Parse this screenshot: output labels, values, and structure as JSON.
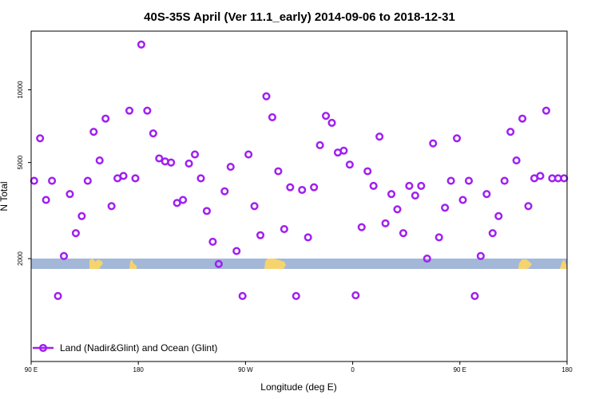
{
  "chart_data": {
    "type": "scatter",
    "title": "40S-35S April (Ver 11.1_early)   2014-09-06 to 2018-12-31",
    "xlabel": "Longitude (deg E)",
    "ylabel": "N Total",
    "x_ticks": [
      {
        "value": 90,
        "label": "90 E"
      },
      {
        "value": 180,
        "label": "180"
      },
      {
        "value": 270,
        "label": "90 W"
      },
      {
        "value": 360,
        "label": "0"
      },
      {
        "value": 450,
        "label": "90 E"
      },
      {
        "value": 540,
        "label": "180"
      }
    ],
    "y_ticks": [
      2000,
      5000,
      10000
    ],
    "xlim": [
      90,
      540
    ],
    "ylim": [
      750,
      17500
    ],
    "y_scale": "log",
    "grid": false,
    "legend": {
      "position": "bottom-left",
      "label": "Land (Nadir&Glint) and Ocean (Glint)"
    },
    "colors": {
      "series": "#a020f0",
      "band": "#a3b8d8",
      "land": "#f5d46e"
    },
    "series": [
      {
        "name": "Land (Nadir&Glint) and Ocean (Glint)",
        "x": [
          92.5,
          97.5,
          102.5,
          107.5,
          112.5,
          117.5,
          122.5,
          127.5,
          132.5,
          137.5,
          142.5,
          147.5,
          152.5,
          157.5,
          162.5,
          167.5,
          172.5,
          177.5,
          182.5,
          187.5,
          192.5,
          197.5,
          202.5,
          207.5,
          212.5,
          217.5,
          222.5,
          227.5,
          232.5,
          237.5,
          242.5,
          247.5,
          252.5,
          257.5,
          262.5,
          267.5,
          272.5,
          277.5,
          282.5,
          287.5,
          292.5,
          297.5,
          302.5,
          307.5,
          312.5,
          317.5,
          322.5,
          327.5,
          332.5,
          337.5,
          342.5,
          347.5,
          352.5,
          357.5,
          362.5,
          367.5,
          372.5,
          377.5,
          382.5,
          387.5,
          392.5,
          397.5,
          402.5,
          407.5,
          412.5,
          417.5,
          422.5,
          427.5,
          432.5,
          437.5,
          442.5,
          447.5,
          452.5,
          457.5,
          462.5,
          467.5,
          472.5,
          477.5,
          482.5,
          487.5,
          492.5,
          497.5,
          502.5,
          507.5,
          512.5,
          517.5,
          522.5,
          527.5,
          532.5,
          537.5
        ],
        "values": [
          4200,
          6300,
          3500,
          4200,
          1400,
          2050,
          3700,
          2550,
          3000,
          4200,
          6700,
          5100,
          7600,
          3300,
          4300,
          4400,
          8200,
          4300,
          15400,
          8200,
          6600,
          5200,
          5050,
          5000,
          3400,
          3500,
          4950,
          5400,
          4300,
          3150,
          2350,
          1900,
          3800,
          4800,
          2150,
          1400,
          5400,
          3300,
          2500,
          9400,
          7700,
          4600,
          2650,
          3950,
          1400,
          3850,
          2450,
          3950,
          5900,
          7800,
          7300,
          5500,
          5600,
          4900,
          1410,
          2700,
          4600,
          4000,
          6400,
          2800,
          3700,
          3200,
          2550,
          4000,
          3650,
          4000,
          2000,
          6000,
          2450,
          3250,
          4200,
          6300,
          3500,
          4200,
          1400,
          2050,
          3700,
          2550,
          3000,
          4200,
          6700,
          5100,
          7600,
          3300,
          4300,
          4400,
          8200,
          4300,
          4300,
          4300
        ]
      }
    ]
  }
}
